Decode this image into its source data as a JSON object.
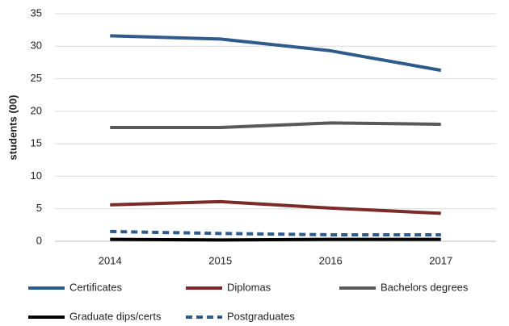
{
  "chart_data": {
    "type": "line",
    "y_label": "students (00)",
    "categories": [
      "2014",
      "2015",
      "2016",
      "2017"
    ],
    "series": [
      {
        "name": "Certificates",
        "color": "#2e5b8c",
        "values": [
          31.6,
          31.1,
          29.3,
          26.3
        ]
      },
      {
        "name": "Diplomas",
        "color": "#7b2a2a",
        "values": [
          5.6,
          6.1,
          5.1,
          4.3
        ]
      },
      {
        "name": "Bachelors degrees",
        "color": "#595959",
        "values": [
          17.5,
          17.5,
          18.2,
          18.0
        ]
      },
      {
        "name": "Graduate dips/certs",
        "color": "#000000",
        "values": [
          0.3,
          0.2,
          0.3,
          0.3
        ]
      },
      {
        "name": "Postgraduates",
        "color": "#2e5b8c",
        "dashed": true,
        "values": [
          1.5,
          1.2,
          1.0,
          1.0
        ]
      }
    ],
    "ylim": [
      0,
      35
    ],
    "yticks": [
      0,
      5,
      10,
      15,
      20,
      25,
      30,
      35
    ],
    "grid": true,
    "legend": "bottom"
  }
}
